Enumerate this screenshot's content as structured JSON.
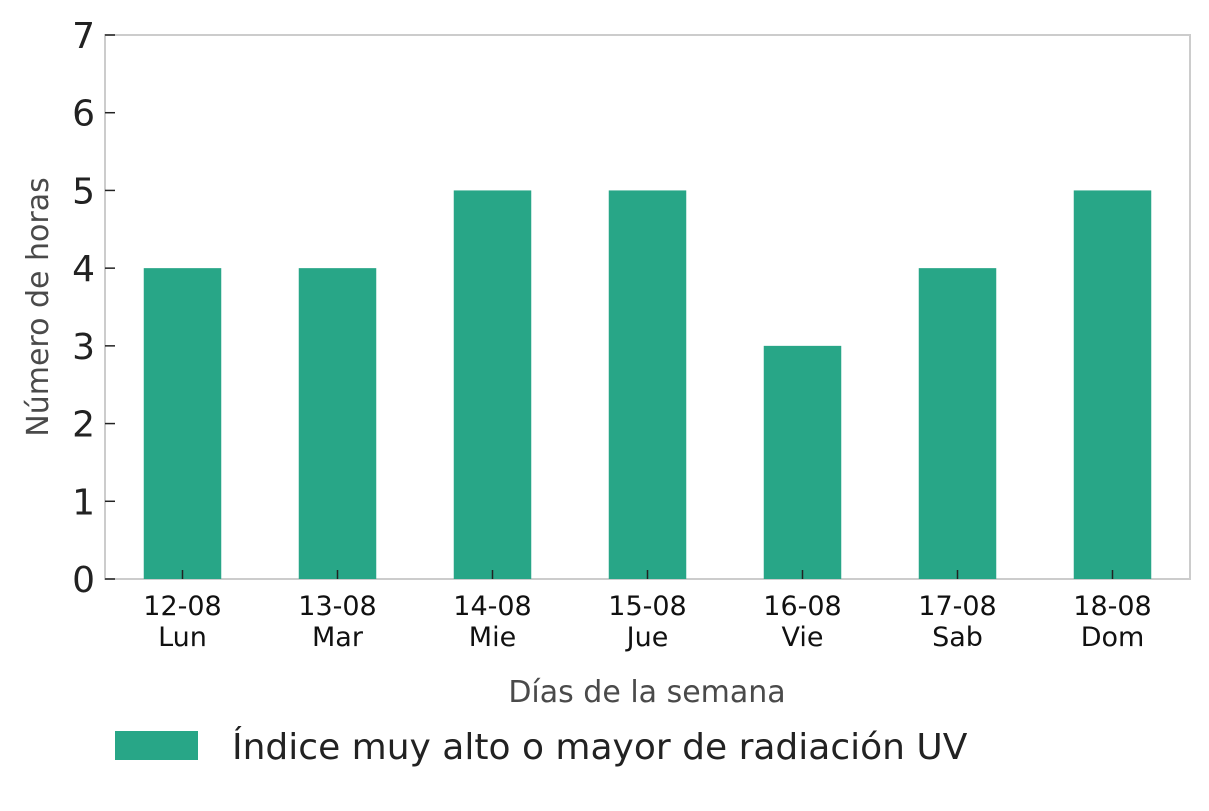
{
  "chart_data": {
    "type": "bar",
    "categories": [
      [
        "12-08",
        "Lun"
      ],
      [
        "13-08",
        "Mar"
      ],
      [
        "14-08",
        "Mie"
      ],
      [
        "15-08",
        "Jue"
      ],
      [
        "16-08",
        "Vie"
      ],
      [
        "17-08",
        "Sab"
      ],
      [
        "18-08",
        "Dom"
      ]
    ],
    "series": [
      {
        "name": "Índice muy alto o mayor de radiación UV",
        "values": [
          4,
          4,
          5,
          5,
          3,
          4,
          5
        ],
        "color": "#28a687"
      }
    ],
    "title": "",
    "xlabel": "Días de la semana",
    "ylabel": "Número de horas",
    "ylim": [
      0,
      7
    ],
    "yticks": [
      0,
      1,
      2,
      3,
      4,
      5,
      6,
      7
    ],
    "grid": false,
    "legend_position": "bottom"
  }
}
